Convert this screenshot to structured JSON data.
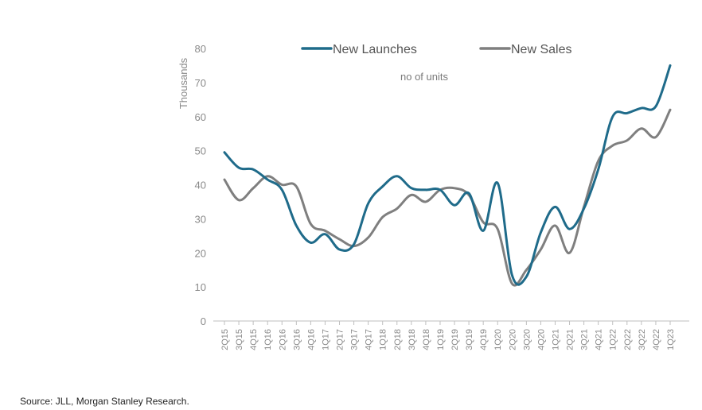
{
  "chart_data": {
    "type": "line",
    "ylabel": "Thousands",
    "annotation": "no of units",
    "ylim": [
      0,
      80
    ],
    "yticks": [
      0,
      10,
      20,
      30,
      40,
      50,
      60,
      70,
      80
    ],
    "grid": false,
    "legend": "top",
    "categories": [
      "2Q15",
      "3Q15",
      "4Q15",
      "1Q16",
      "2Q16",
      "3Q16",
      "4Q16",
      "1Q17",
      "2Q17",
      "3Q17",
      "4Q17",
      "1Q18",
      "2Q18",
      "3Q18",
      "4Q18",
      "1Q19",
      "2Q19",
      "3Q19",
      "4Q19",
      "1Q20",
      "2Q20",
      "3Q20",
      "4Q20",
      "1Q21",
      "2Q21",
      "3Q21",
      "4Q21",
      "1Q22",
      "2Q22",
      "3Q22",
      "4Q22",
      "1Q23"
    ],
    "series": [
      {
        "name": "New Launches",
        "color": "#1f6b8a",
        "values": [
          49.5,
          45,
          44.5,
          41.5,
          38.5,
          28,
          23,
          25.5,
          21,
          22.5,
          34.5,
          39.5,
          42.5,
          39,
          38.5,
          38.5,
          34,
          37.5,
          26.5,
          40.5,
          13.5,
          13,
          26,
          33.5,
          27,
          33,
          44.5,
          60,
          61,
          62.5,
          63,
          75
        ]
      },
      {
        "name": "New Sales",
        "color": "#7f7f7f",
        "values": [
          41.5,
          35.5,
          39,
          42.5,
          40,
          39.5,
          28.5,
          26.5,
          24,
          22,
          24.5,
          30.5,
          33,
          37,
          35,
          38.5,
          39,
          37,
          29,
          27,
          11,
          15,
          21,
          28,
          20,
          33.5,
          47,
          51.5,
          53,
          56.5,
          54,
          62
        ]
      }
    ]
  },
  "footer": {
    "source": "Source: JLL, Morgan Stanley Research."
  }
}
